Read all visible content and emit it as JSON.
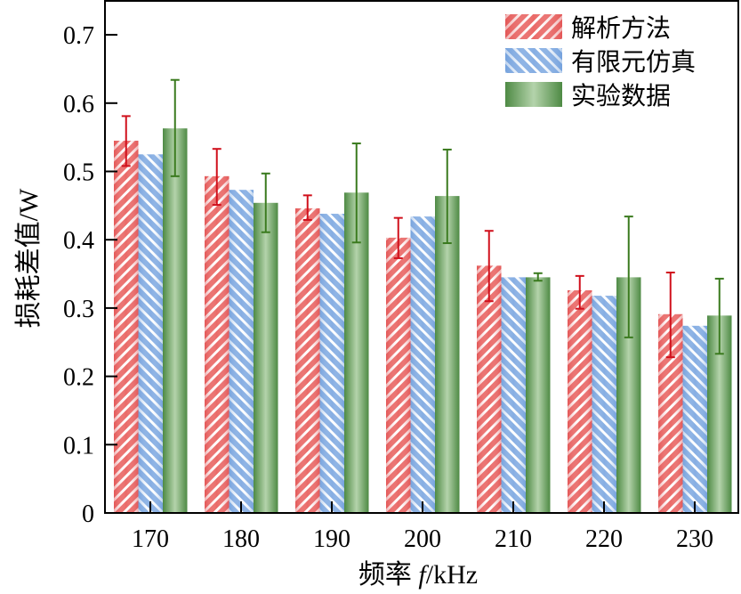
{
  "chart_data": {
    "type": "bar",
    "xlabel": "频率 f/kHz",
    "ylabel": "损耗差值/W",
    "ylim": [
      0,
      0.75
    ],
    "yticks": [
      "0",
      "0.1",
      "0.2",
      "0.3",
      "0.4",
      "0.5",
      "0.6",
      "0.7"
    ],
    "categories": [
      "170",
      "180",
      "190",
      "200",
      "210",
      "220",
      "230"
    ],
    "legend_position": "top-right",
    "grid": false,
    "series": [
      {
        "name": "解析方法",
        "color": "#e4474a",
        "pattern": "hatch-down",
        "values": [
          0.545,
          0.493,
          0.446,
          0.403,
          0.362,
          0.326,
          0.291
        ],
        "err_low": [
          0.508,
          0.451,
          0.429,
          0.373,
          0.31,
          0.299,
          0.228
        ],
        "err_high": [
          0.581,
          0.533,
          0.465,
          0.432,
          0.413,
          0.347,
          0.352
        ],
        "err_color": "#d0101c"
      },
      {
        "name": "有限元仿真",
        "color": "#6f9fdc",
        "pattern": "hatch-up",
        "values": [
          0.525,
          0.473,
          0.438,
          0.434,
          0.345,
          0.318,
          0.274
        ]
      },
      {
        "name": "实验数据",
        "color": "#5f9a55",
        "pattern": "gradient",
        "values": [
          0.563,
          0.454,
          0.469,
          0.464,
          0.345,
          0.345,
          0.289
        ],
        "err_low": [
          0.493,
          0.411,
          0.396,
          0.395,
          0.34,
          0.257,
          0.233
        ],
        "err_high": [
          0.634,
          0.497,
          0.541,
          0.532,
          0.351,
          0.434,
          0.343
        ],
        "err_color": "#3a7a1e"
      }
    ]
  }
}
